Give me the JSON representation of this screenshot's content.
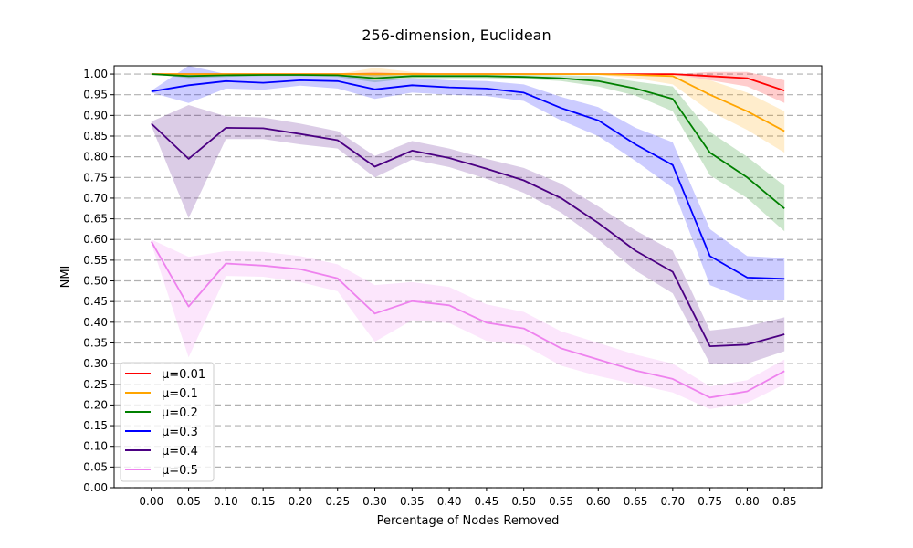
{
  "chart_data": {
    "type": "line",
    "title": "256-dimension, Euclidean",
    "xlabel": "Percentage of Nodes Removed",
    "ylabel": "NMI",
    "x": [
      0.0,
      0.05,
      0.1,
      0.15,
      0.2,
      0.25,
      0.3,
      0.35,
      0.4,
      0.45,
      0.5,
      0.55,
      0.6,
      0.65,
      0.7,
      0.75,
      0.8,
      0.85
    ],
    "x_tick_labels": [
      "0.00",
      "0.05",
      "0.10",
      "0.15",
      "0.20",
      "0.25",
      "0.30",
      "0.35",
      "0.40",
      "0.45",
      "0.50",
      "0.55",
      "0.60",
      "0.65",
      "0.70",
      "0.75",
      "0.80",
      "0.85"
    ],
    "xlim": [
      -0.05,
      0.9
    ],
    "ylim": [
      0.0,
      1.02
    ],
    "y_ticks": [
      0.0,
      0.05,
      0.1,
      0.15,
      0.2,
      0.25,
      0.3,
      0.35,
      0.4,
      0.45,
      0.5,
      0.55,
      0.6,
      0.65,
      0.7,
      0.75,
      0.8,
      0.85,
      0.9,
      0.95,
      1.0
    ],
    "y_tick_labels": [
      "0.00",
      "0.05",
      "0.10",
      "0.15",
      "0.20",
      "0.25",
      "0.30",
      "0.35",
      "0.40",
      "0.45",
      "0.50",
      "0.55",
      "0.60",
      "0.65",
      "0.70",
      "0.75",
      "0.80",
      "0.85",
      "0.90",
      "0.95",
      "1.00"
    ],
    "grid": "horizontal dashed",
    "legend_position": "lower-left",
    "series": [
      {
        "name": "μ=0.01",
        "color": "#ff0000",
        "values": [
          1.0,
          1.0,
          1.0,
          1.0,
          1.0,
          1.0,
          1.0,
          1.0,
          1.0,
          1.0,
          1.0,
          1.0,
          1.0,
          1.0,
          1.0,
          0.995,
          0.99,
          0.96
        ],
        "lower": [
          1.0,
          1.0,
          1.0,
          1.0,
          1.0,
          1.0,
          0.995,
          1.0,
          1.0,
          1.0,
          1.0,
          1.0,
          1.0,
          1.0,
          1.0,
          0.985,
          0.97,
          0.93
        ],
        "upper": [
          1.0,
          1.0,
          1.0,
          1.0,
          1.0,
          1.0,
          1.005,
          1.0,
          1.0,
          1.0,
          1.0,
          1.0,
          1.0,
          1.0,
          1.0,
          1.005,
          1.005,
          0.985
        ]
      },
      {
        "name": "μ=0.1",
        "color": "#ffa500",
        "values": [
          1.0,
          1.0,
          1.0,
          1.0,
          1.0,
          1.0,
          1.0,
          1.0,
          1.0,
          1.0,
          1.0,
          1.0,
          1.0,
          0.998,
          0.995,
          0.95,
          0.91,
          0.862
        ],
        "lower": [
          1.0,
          1.0,
          1.0,
          1.0,
          1.0,
          1.0,
          0.985,
          0.995,
          1.0,
          1.0,
          1.0,
          1.0,
          0.998,
          0.99,
          0.975,
          0.91,
          0.865,
          0.81
        ],
        "upper": [
          1.0,
          1.0,
          1.0,
          1.0,
          1.0,
          1.0,
          1.015,
          1.005,
          1.0,
          1.0,
          1.0,
          1.0,
          1.0,
          1.0,
          1.0,
          0.985,
          0.955,
          0.91
        ]
      },
      {
        "name": "μ=0.2",
        "color": "#008000",
        "values": [
          1.0,
          0.995,
          0.997,
          0.998,
          0.998,
          0.997,
          0.99,
          0.995,
          0.995,
          0.995,
          0.993,
          0.99,
          0.983,
          0.965,
          0.94,
          0.81,
          0.75,
          0.675
        ],
        "lower": [
          1.0,
          0.99,
          0.993,
          0.995,
          0.995,
          0.993,
          0.98,
          0.99,
          0.99,
          0.99,
          0.988,
          0.983,
          0.97,
          0.948,
          0.91,
          0.755,
          0.7,
          0.62
        ],
        "upper": [
          1.0,
          1.0,
          1.0,
          1.0,
          1.0,
          1.0,
          1.0,
          1.0,
          1.0,
          1.0,
          0.998,
          0.997,
          0.995,
          0.982,
          0.97,
          0.86,
          0.8,
          0.73
        ]
      },
      {
        "name": "μ=0.3",
        "color": "#0000ff",
        "values": [
          0.958,
          0.973,
          0.983,
          0.979,
          0.985,
          0.983,
          0.963,
          0.973,
          0.968,
          0.965,
          0.955,
          0.918,
          0.888,
          0.83,
          0.78,
          0.56,
          0.508,
          0.505
        ],
        "lower": [
          0.955,
          0.93,
          0.965,
          0.962,
          0.972,
          0.965,
          0.94,
          0.955,
          0.95,
          0.947,
          0.935,
          0.888,
          0.85,
          0.79,
          0.725,
          0.49,
          0.455,
          0.453
        ],
        "upper": [
          0.96,
          1.02,
          1.0,
          0.998,
          0.998,
          0.998,
          0.985,
          0.99,
          0.985,
          0.983,
          0.975,
          0.945,
          0.92,
          0.87,
          0.835,
          0.625,
          0.56,
          0.555
        ]
      },
      {
        "name": "μ=0.4",
        "color": "#4b0082",
        "values": [
          0.88,
          0.795,
          0.87,
          0.869,
          0.855,
          0.84,
          0.776,
          0.815,
          0.797,
          0.771,
          0.743,
          0.7,
          0.64,
          0.573,
          0.522,
          0.342,
          0.346,
          0.371
        ],
        "lower": [
          0.875,
          0.652,
          0.843,
          0.843,
          0.83,
          0.82,
          0.75,
          0.793,
          0.775,
          0.747,
          0.713,
          0.665,
          0.6,
          0.525,
          0.47,
          0.3,
          0.3,
          0.33
        ],
        "upper": [
          0.885,
          0.925,
          0.898,
          0.895,
          0.88,
          0.862,
          0.802,
          0.838,
          0.82,
          0.795,
          0.773,
          0.735,
          0.68,
          0.622,
          0.573,
          0.38,
          0.39,
          0.412
        ]
      },
      {
        "name": "μ=0.5",
        "color": "#ee82ee",
        "values": [
          0.595,
          0.438,
          0.542,
          0.537,
          0.528,
          0.506,
          0.421,
          0.451,
          0.441,
          0.399,
          0.385,
          0.337,
          0.31,
          0.283,
          0.263,
          0.218,
          0.233,
          0.282
        ],
        "lower": [
          0.59,
          0.315,
          0.512,
          0.51,
          0.497,
          0.475,
          0.353,
          0.405,
          0.398,
          0.355,
          0.345,
          0.295,
          0.27,
          0.25,
          0.23,
          0.19,
          0.205,
          0.25
        ],
        "upper": [
          0.6,
          0.558,
          0.572,
          0.57,
          0.56,
          0.54,
          0.49,
          0.497,
          0.485,
          0.443,
          0.425,
          0.378,
          0.35,
          0.322,
          0.3,
          0.245,
          0.26,
          0.31
        ]
      }
    ]
  }
}
